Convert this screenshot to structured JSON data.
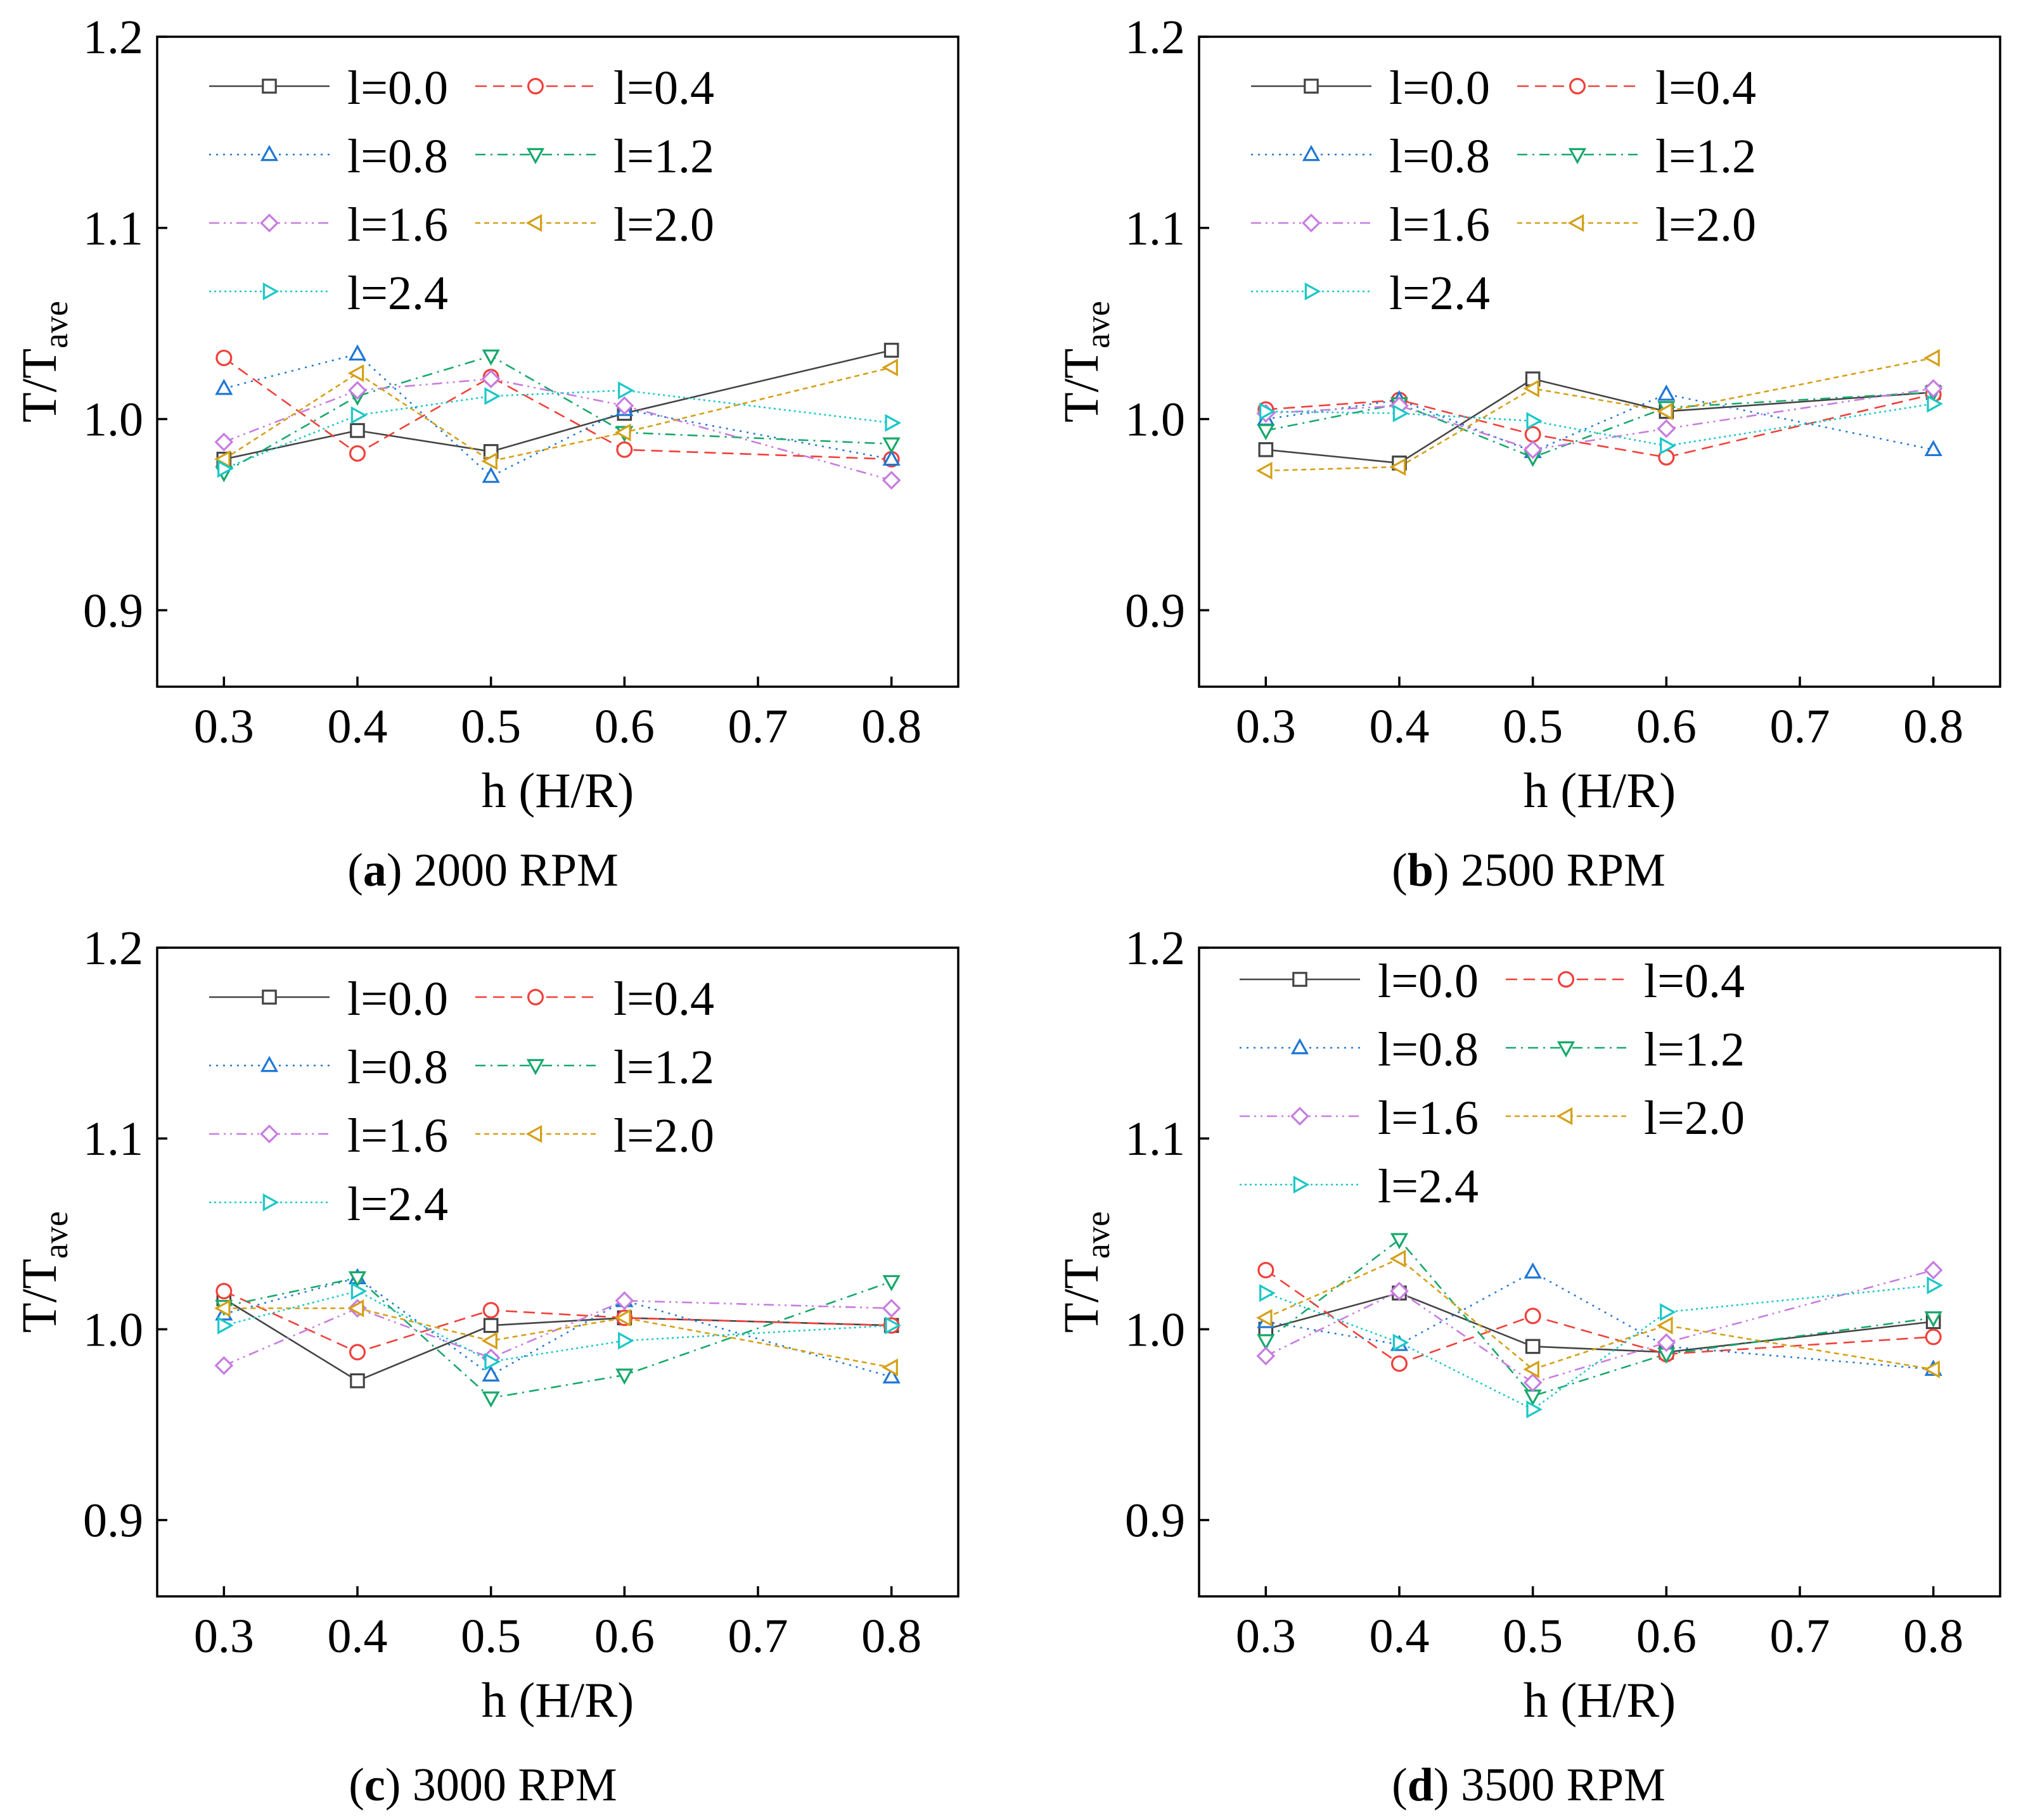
{
  "figure": {
    "description_units": "x = h (H/R), y = T/Tave"
  },
  "series_styles": {
    "l=0.0": {
      "color": "#444444",
      "marker": "square",
      "dash": "solid"
    },
    "l=0.4": {
      "color": "#f0403a",
      "marker": "circle",
      "dash": "dashed"
    },
    "l=0.8": {
      "color": "#1f77d4",
      "marker": "triangle-up",
      "dash": "dotted"
    },
    "l=1.2": {
      "color": "#17a86b",
      "marker": "triangle-down",
      "dash": "dashdot"
    },
    "l=1.6": {
      "color": "#c77ce0",
      "marker": "diamond",
      "dash": "dashdotdot"
    },
    "l=2.0": {
      "color": "#d4a017",
      "marker": "triangle-left",
      "dash": "shortdash"
    },
    "l=2.4": {
      "color": "#1ac7c7",
      "marker": "triangle-right",
      "dash": "shortdot"
    }
  },
  "chart_data": [
    {
      "type": "line",
      "caption_letter": "a",
      "caption_text": " 2000 RPM",
      "xlabel": "h (H/R)",
      "ylabel_main": "T/T",
      "ylabel_sub": "ave",
      "xlim": [
        0.25,
        0.85
      ],
      "ylim": [
        0.86,
        1.2
      ],
      "xticks": [
        0.3,
        0.4,
        0.5,
        0.6,
        0.7,
        0.8
      ],
      "xtick_labels": [
        "0.3",
        "0.4",
        "0.5",
        "0.6",
        "0.7",
        "0.8"
      ],
      "yticks": [
        0.9,
        1.0,
        1.1,
        1.2
      ],
      "ytick_labels": [
        "0.9",
        "1.0",
        "1.1",
        "1.2"
      ],
      "x": [
        0.3,
        0.4,
        0.5,
        0.6,
        0.8
      ],
      "legend_position": "top-left",
      "series": [
        {
          "name": "l=0.0",
          "values": [
            0.979,
            0.994,
            0.983,
            1.003,
            1.036
          ]
        },
        {
          "name": "l=0.4",
          "values": [
            1.032,
            0.982,
            1.022,
            0.984,
            0.979
          ]
        },
        {
          "name": "l=0.8",
          "values": [
            1.016,
            1.034,
            0.97,
            1.005,
            0.979
          ]
        },
        {
          "name": "l=1.2",
          "values": [
            0.972,
            1.012,
            1.033,
            0.993,
            0.987
          ]
        },
        {
          "name": "l=1.6",
          "values": [
            0.988,
            1.015,
            1.021,
            1.007,
            0.968
          ]
        },
        {
          "name": "l=2.0",
          "values": [
            0.979,
            1.024,
            0.978,
            0.993,
            1.027
          ]
        },
        {
          "name": "l=2.4",
          "values": [
            0.974,
            1.002,
            1.012,
            1.015,
            0.998
          ]
        }
      ]
    },
    {
      "type": "line",
      "caption_letter": "b",
      "caption_text": " 2500 RPM",
      "xlabel": "h (H/R)",
      "ylabel_main": "T/T",
      "ylabel_sub": "ave",
      "xlim": [
        0.25,
        0.85
      ],
      "ylim": [
        0.86,
        1.2
      ],
      "xticks": [
        0.3,
        0.4,
        0.5,
        0.6,
        0.7,
        0.8
      ],
      "xtick_labels": [
        "0.3",
        "0.4",
        "0.5",
        "0.6",
        "0.7",
        "0.8"
      ],
      "yticks": [
        0.9,
        1.0,
        1.1,
        1.2
      ],
      "ytick_labels": [
        "0.9",
        "1.0",
        "1.1",
        "1.2"
      ],
      "x": [
        0.3,
        0.4,
        0.5,
        0.6,
        0.8
      ],
      "legend_position": "top-left",
      "series": [
        {
          "name": "l=0.0",
          "values": [
            0.984,
            0.977,
            1.021,
            1.004,
            1.014
          ]
        },
        {
          "name": "l=0.4",
          "values": [
            1.005,
            1.01,
            0.992,
            0.98,
            1.013
          ]
        },
        {
          "name": "l=0.8",
          "values": [
            1.0,
            1.01,
            0.983,
            1.013,
            0.984
          ]
        },
        {
          "name": "l=1.2",
          "values": [
            0.994,
            1.008,
            0.98,
            1.006,
            1.014
          ]
        },
        {
          "name": "l=1.6",
          "values": [
            1.003,
            1.007,
            0.984,
            0.995,
            1.016
          ]
        },
        {
          "name": "l=2.0",
          "values": [
            0.973,
            0.975,
            1.016,
            1.004,
            1.032
          ]
        },
        {
          "name": "l=2.4",
          "values": [
            1.004,
            1.003,
            0.999,
            0.986,
            1.008
          ]
        }
      ]
    },
    {
      "type": "line",
      "caption_letter": "c",
      "caption_text": " 3000 RPM",
      "xlabel": "h (H/R)",
      "ylabel_main": "T/T",
      "ylabel_sub": "ave",
      "xlim": [
        0.25,
        0.85
      ],
      "ylim": [
        0.86,
        1.2
      ],
      "xticks": [
        0.3,
        0.4,
        0.5,
        0.6,
        0.7,
        0.8
      ],
      "xtick_labels": [
        "0.3",
        "0.4",
        "0.5",
        "0.6",
        "0.7",
        "0.8"
      ],
      "yticks": [
        0.9,
        1.0,
        1.1,
        1.2
      ],
      "ytick_labels": [
        "0.9",
        "1.0",
        "1.1",
        "1.2"
      ],
      "x": [
        0.3,
        0.4,
        0.5,
        0.6,
        0.8
      ],
      "legend_position": "top-left",
      "series": [
        {
          "name": "l=0.0",
          "values": [
            1.016,
            0.973,
            1.002,
            1.006,
            1.002
          ]
        },
        {
          "name": "l=0.4",
          "values": [
            1.02,
            0.988,
            1.01,
            1.006,
            1.002
          ]
        },
        {
          "name": "l=0.8",
          "values": [
            1.008,
            1.027,
            0.976,
            1.015,
            0.975
          ]
        },
        {
          "name": "l=1.2",
          "values": [
            1.012,
            1.027,
            0.964,
            0.976,
            1.025
          ]
        },
        {
          "name": "l=1.6",
          "values": [
            0.981,
            1.011,
            0.985,
            1.015,
            1.011
          ]
        },
        {
          "name": "l=2.0",
          "values": [
            1.011,
            1.011,
            0.994,
            1.006,
            0.98
          ]
        },
        {
          "name": "l=2.4",
          "values": [
            1.002,
            1.02,
            0.983,
            0.994,
            1.002
          ]
        }
      ]
    },
    {
      "type": "line",
      "caption_letter": "d",
      "caption_text": " 3500 RPM",
      "xlabel": "h (H/R)",
      "ylabel_main": "T/T",
      "ylabel_sub": "ave",
      "xlim": [
        0.25,
        0.85
      ],
      "ylim": [
        0.86,
        1.2
      ],
      "xticks": [
        0.3,
        0.4,
        0.5,
        0.6,
        0.7,
        0.8
      ],
      "xtick_labels": [
        "0.3",
        "0.4",
        "0.5",
        "0.6",
        "0.7",
        "0.8"
      ],
      "yticks": [
        0.9,
        1.0,
        1.1,
        1.2
      ],
      "ytick_labels": [
        "0.9",
        "1.0",
        "1.1",
        "1.2"
      ],
      "x": [
        0.3,
        0.4,
        0.5,
        0.6,
        0.8
      ],
      "legend_position": "top-left",
      "series": [
        {
          "name": "l=0.0",
          "values": [
            1.0,
            1.019,
            0.991,
            0.988,
            1.004
          ]
        },
        {
          "name": "l=0.4",
          "values": [
            1.031,
            0.982,
            1.007,
            0.987,
            0.996
          ]
        },
        {
          "name": "l=0.8",
          "values": [
            1.004,
            0.992,
            1.03,
            0.991,
            0.979
          ]
        },
        {
          "name": "l=1.2",
          "values": [
            0.994,
            1.047,
            0.965,
            0.987,
            1.006
          ]
        },
        {
          "name": "l=1.6",
          "values": [
            0.986,
            1.02,
            0.972,
            0.993,
            1.031
          ]
        },
        {
          "name": "l=2.0",
          "values": [
            1.006,
            1.037,
            0.979,
            1.002,
            0.979
          ]
        },
        {
          "name": "l=2.4",
          "values": [
            1.019,
            0.993,
            0.958,
            1.009,
            1.023
          ]
        }
      ]
    }
  ]
}
